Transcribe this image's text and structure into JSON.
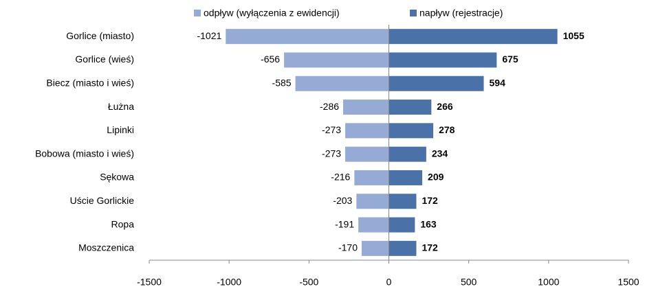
{
  "chart_data": {
    "type": "bar",
    "categories": [
      "Gorlice (miasto)",
      "Gorlice (wieś)",
      "Biecz (miasto  i wieś)",
      "Łużna",
      "Lipinki",
      "Bobowa (miasto  i wieś)",
      "Sękowa",
      "Uście Gorlickie",
      "Ropa",
      "Moszczenica"
    ],
    "series": [
      {
        "name": "odpływ  (wyłączenia z ewidencji)",
        "color": "#95abd6",
        "values": [
          -1021,
          -656,
          -585,
          -286,
          -273,
          -273,
          -216,
          -203,
          -191,
          -170
        ]
      },
      {
        "name": "napływ  (rejestracje)",
        "color": "#4a72a8",
        "values": [
          1055,
          675,
          594,
          266,
          278,
          234,
          209,
          172,
          163,
          172
        ]
      }
    ],
    "xlim": [
      -1500,
      1500
    ],
    "xticks": [
      -1500,
      -1000,
      -500,
      0,
      500,
      1000,
      1500
    ]
  }
}
